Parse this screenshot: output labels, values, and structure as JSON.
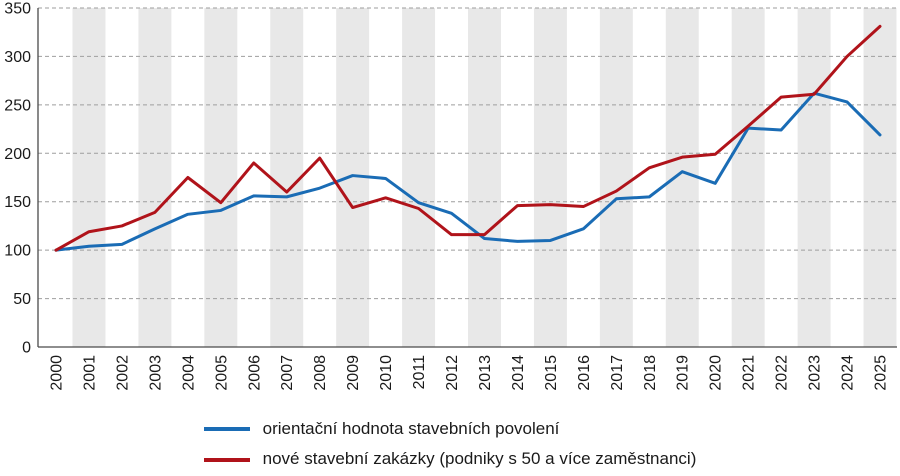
{
  "chart_data": {
    "type": "line",
    "title": "",
    "xlabel": "",
    "ylabel": "",
    "ylim": [
      0,
      350
    ],
    "ytick_step": 50,
    "grid": "horizontal-dashed",
    "plot_background": "alternating-vertical-bands-on-odd-years",
    "legend_position": "bottom",
    "x": [
      2000,
      2001,
      2002,
      2003,
      2004,
      2005,
      2006,
      2007,
      2008,
      2009,
      2010,
      2011,
      2012,
      2013,
      2014,
      2015,
      2016,
      2017,
      2018,
      2019,
      2020,
      2021,
      2022,
      2023,
      2024,
      2025
    ],
    "series": [
      {
        "name": "orientační hodnota stavebních povolení",
        "color": "#1a6cb5",
        "values": [
          100,
          104,
          106,
          122,
          137,
          141,
          156,
          155,
          164,
          177,
          174,
          149,
          138,
          112,
          109,
          110,
          122,
          153,
          155,
          181,
          169,
          226,
          224,
          262,
          253,
          219
        ]
      },
      {
        "name": "nové stavební zakázky (podniky s 50 a více zaměstnanci)",
        "color": "#b0131a",
        "values": [
          100,
          119,
          125,
          139,
          175,
          149,
          190,
          160,
          195,
          144,
          154,
          143,
          116,
          116,
          146,
          147,
          145,
          161,
          185,
          196,
          199,
          228,
          258,
          261,
          300,
          331
        ]
      }
    ],
    "yticks": [
      0,
      50,
      100,
      150,
      200,
      250,
      300,
      350
    ]
  },
  "colors": {
    "band": "#e8e8e8",
    "grid": "#9e9e9e",
    "axis": "#4a4a4a",
    "text": "#1a1a1a"
  },
  "legend": {
    "items": [
      {
        "label": "orientační hodnota stavebních povolení",
        "color": "#1a6cb5"
      },
      {
        "label": "nové stavební zakázky (podniky s 50 a více zaměstnanci)",
        "color": "#b0131a"
      }
    ]
  }
}
